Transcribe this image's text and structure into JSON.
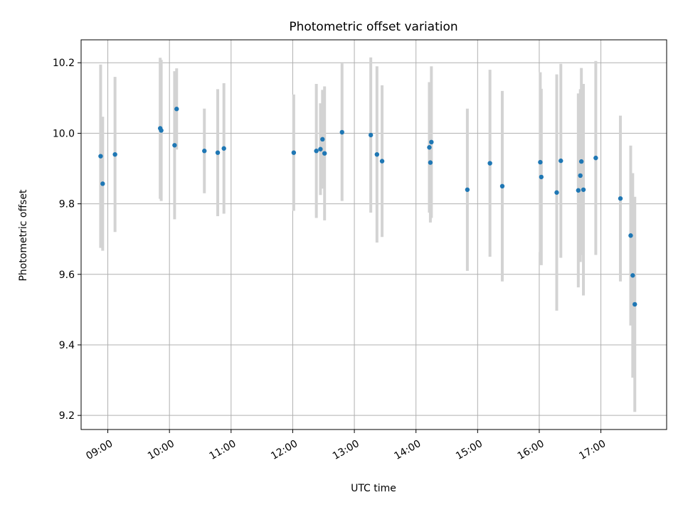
{
  "chart_data": {
    "type": "scatter",
    "title": "Photometric offset variation",
    "xlabel": "UTC time",
    "ylabel": "Photometric offset",
    "grid": true,
    "xlim": [
      "08:34",
      "18:04"
    ],
    "ylim": [
      9.16,
      10.265
    ],
    "x_ticks": [
      "09:00",
      "10:00",
      "11:00",
      "12:00",
      "13:00",
      "14:00",
      "15:00",
      "16:00",
      "17:00"
    ],
    "y_ticks": [
      "9.2",
      "9.4",
      "9.6",
      "9.8",
      "10.0",
      "10.2"
    ],
    "colors": {
      "points": "#1f77b4",
      "error_bars": "#d3d3d3",
      "grid": "#b0b0b0"
    },
    "points": [
      {
        "x": "08:53",
        "y": 9.935,
        "err": 0.26
      },
      {
        "x": "08:55",
        "y": 9.857,
        "err": 0.19
      },
      {
        "x": "09:07",
        "y": 9.94,
        "err": 0.22
      },
      {
        "x": "09:51",
        "y": 10.014,
        "err": 0.2
      },
      {
        "x": "09:52",
        "y": 10.008,
        "err": 0.2
      },
      {
        "x": "10:05",
        "y": 9.966,
        "err": 0.21
      },
      {
        "x": "10:07",
        "y": 10.069,
        "err": 0.115
      },
      {
        "x": "10:34",
        "y": 9.95,
        "err": 0.12
      },
      {
        "x": "10:47",
        "y": 9.945,
        "err": 0.18
      },
      {
        "x": "10:53",
        "y": 9.957,
        "err": 0.185
      },
      {
        "x": "12:01",
        "y": 9.945,
        "err": 0.165
      },
      {
        "x": "12:23",
        "y": 9.95,
        "err": 0.19
      },
      {
        "x": "12:27",
        "y": 9.955,
        "err": 0.13
      },
      {
        "x": "12:29",
        "y": 9.983,
        "err": 0.14
      },
      {
        "x": "12:31",
        "y": 9.943,
        "err": 0.19
      },
      {
        "x": "12:48",
        "y": 10.003,
        "err": 0.195
      },
      {
        "x": "13:16",
        "y": 9.995,
        "err": 0.22
      },
      {
        "x": "13:22",
        "y": 9.94,
        "err": 0.25
      },
      {
        "x": "13:27",
        "y": 9.921,
        "err": 0.215
      },
      {
        "x": "14:13",
        "y": 9.96,
        "err": 0.185
      },
      {
        "x": "14:14",
        "y": 9.917,
        "err": 0.17
      },
      {
        "x": "14:15",
        "y": 9.975,
        "err": 0.215
      },
      {
        "x": "14:50",
        "y": 9.84,
        "err": 0.23
      },
      {
        "x": "15:12",
        "y": 9.915,
        "err": 0.265
      },
      {
        "x": "15:24",
        "y": 9.85,
        "err": 0.27
      },
      {
        "x": "16:01",
        "y": 9.918,
        "err": 0.255
      },
      {
        "x": "16:02",
        "y": 9.876,
        "err": 0.25
      },
      {
        "x": "16:17",
        "y": 9.832,
        "err": 0.335
      },
      {
        "x": "16:21",
        "y": 9.922,
        "err": 0.275
      },
      {
        "x": "16:38",
        "y": 9.838,
        "err": 0.275
      },
      {
        "x": "16:40",
        "y": 9.88,
        "err": 0.245
      },
      {
        "x": "16:41",
        "y": 9.92,
        "err": 0.265
      },
      {
        "x": "16:43",
        "y": 9.84,
        "err": 0.3
      },
      {
        "x": "16:55",
        "y": 9.93,
        "err": 0.275
      },
      {
        "x": "17:19",
        "y": 9.815,
        "err": 0.235
      },
      {
        "x": "17:29",
        "y": 9.71,
        "err": 0.255
      },
      {
        "x": "17:31",
        "y": 9.597,
        "err": 0.29
      },
      {
        "x": "17:33",
        "y": 9.515,
        "err": 0.305
      }
    ]
  }
}
